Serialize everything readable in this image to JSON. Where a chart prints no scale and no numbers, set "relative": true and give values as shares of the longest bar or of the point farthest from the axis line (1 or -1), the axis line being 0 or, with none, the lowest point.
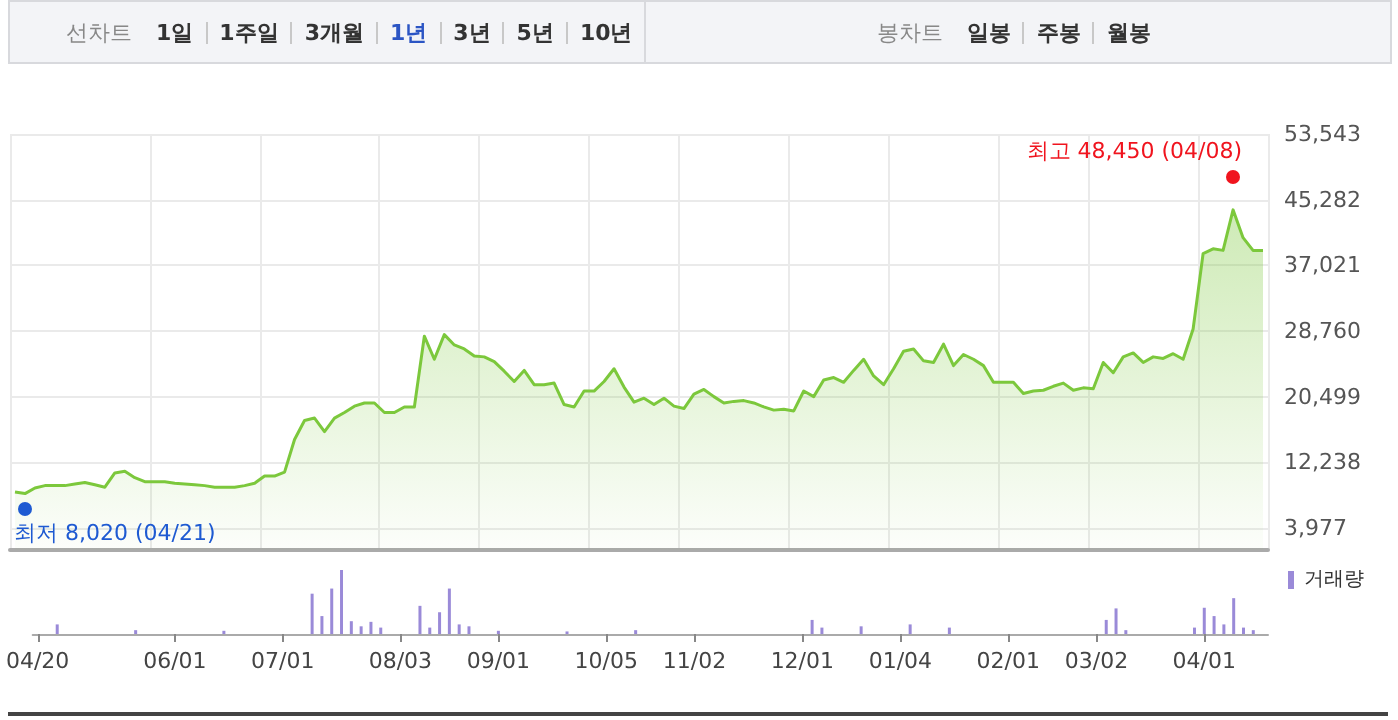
{
  "chart_data": [
    {
      "type": "area",
      "grid": true,
      "tick_labels": "y",
      "categories": [
        null,
        null,
        null,
        null,
        null,
        null,
        null,
        null,
        null,
        null,
        null,
        null,
        null,
        null,
        null,
        null,
        null,
        null,
        null,
        null,
        null,
        null,
        null,
        null,
        null,
        null,
        null,
        null,
        null,
        null,
        null,
        null,
        null,
        null,
        null,
        null,
        null,
        null,
        null,
        null,
        null,
        null,
        null,
        null,
        null,
        null,
        null,
        null,
        null,
        null,
        null,
        null,
        null,
        null,
        null,
        null,
        null,
        null,
        null,
        null,
        null,
        null,
        null,
        null,
        null,
        null,
        null,
        null,
        null,
        null,
        null,
        null,
        null,
        null,
        null,
        null,
        null,
        null,
        null,
        null,
        null,
        null,
        null,
        null,
        null,
        null,
        null,
        null,
        null,
        null,
        null,
        null,
        null,
        null,
        null,
        null,
        null,
        null,
        null,
        null,
        null,
        null,
        null,
        null,
        null,
        null,
        null,
        null,
        null,
        null,
        null,
        null,
        null,
        null,
        null,
        null,
        null,
        null,
        null,
        null,
        null,
        null,
        null,
        null,
        null,
        null
      ],
      "series": [
        {
          "color": "#7cc83c",
          "values": [
            8500,
            8300,
            9000,
            9300,
            9300,
            9300,
            9500,
            9700,
            9400,
            9100,
            10900,
            11100,
            10300,
            9800,
            9800,
            9800,
            9600,
            9500,
            9400,
            9300,
            9100,
            9100,
            9100,
            9300,
            9600,
            10500,
            10500,
            11000,
            15100,
            17500,
            17800,
            16100,
            17800,
            18500,
            19300,
            19700,
            19700,
            18500,
            18500,
            19200,
            19200,
            28100,
            25200,
            28300,
            27000,
            26500,
            25600,
            25500,
            24900,
            23700,
            22400,
            23800,
            22000,
            22000,
            22200,
            19500,
            19200,
            21200,
            21200,
            22400,
            24000,
            21700,
            19800,
            20300,
            19500,
            20300,
            19300,
            19000,
            20800,
            21400,
            20500,
            19700,
            19900,
            20000,
            19700,
            19200,
            18800,
            18900,
            18700,
            21200,
            20500,
            22600,
            22900,
            22300,
            23800,
            25200,
            23100,
            22000,
            24000,
            26200,
            26500,
            25000,
            24800,
            27100,
            24400,
            25800,
            25200,
            24400,
            22300,
            22300,
            22300,
            20900,
            21200,
            21300,
            21800,
            22200,
            21300,
            21600,
            21500,
            24800,
            23500,
            25500,
            26000,
            24800,
            25500,
            25300,
            25900,
            25200,
            29000,
            38500,
            39100,
            38900,
            44000,
            40500,
            38900,
            38900
          ]
        }
      ],
      "ylim": [
        1200,
        53543
      ],
      "yticks": [
        {
          "value": 3977,
          "label": "3,977"
        },
        {
          "value": 12238,
          "label": "12,238"
        },
        {
          "value": 20499,
          "label": "20,499"
        },
        {
          "value": 28760,
          "label": "28,760"
        },
        {
          "value": 37021,
          "label": "37,021"
        },
        {
          "value": 45282,
          "label": "45,282"
        },
        {
          "value": 53543,
          "label": "53,543"
        }
      ],
      "annotations": [
        "최고 48,450 (04/08)",
        "최저 8,020 (04/21)",
        "선차트",
        "1일",
        "1주일",
        "3개월",
        "1년",
        "3년",
        "5년",
        "10년",
        "봉차트",
        "일봉",
        "주봉",
        "월봉"
      ]
    },
    {
      "type": "bar",
      "relative": true,
      "tick_labels": "x",
      "legend": "top right",
      "categories": [
        "04/20",
        null,
        null,
        null,
        null,
        null,
        null,
        null,
        null,
        null,
        null,
        null,
        null,
        null,
        "06/01",
        null,
        null,
        null,
        null,
        null,
        null,
        null,
        null,
        null,
        null,
        "07/01",
        null,
        null,
        null,
        null,
        null,
        null,
        null,
        null,
        null,
        null,
        null,
        "08/03",
        null,
        null,
        null,
        null,
        null,
        null,
        null,
        null,
        null,
        "09/01",
        null,
        null,
        null,
        null,
        null,
        null,
        null,
        null,
        null,
        null,
        "10/05",
        null,
        null,
        null,
        null,
        null,
        null,
        null,
        null,
        "11/02",
        null,
        null,
        null,
        null,
        null,
        null,
        null,
        null,
        null,
        null,
        "12/01",
        null,
        null,
        null,
        null,
        null,
        null,
        null,
        null,
        null,
        "01/04",
        null,
        null,
        null,
        null,
        null,
        null,
        null,
        null,
        null,
        null,
        "02/01",
        null,
        null,
        null,
        null,
        null,
        null,
        null,
        null,
        "03/02",
        null,
        null,
        null,
        null,
        null,
        null,
        null,
        null,
        null,
        null,
        "04/01",
        null,
        null,
        null,
        null,
        null,
        null
      ],
      "series": [
        {
          "name": "거래량",
          "color": "#9a8ad8",
          "values": [
            null,
            null,
            0.15,
            null,
            null,
            null,
            null,
            null,
            null,
            null,
            0.06,
            null,
            null,
            null,
            null,
            null,
            null,
            null,
            null,
            0.05,
            null,
            null,
            null,
            null,
            null,
            null,
            null,
            null,
            0.63,
            0.28,
            0.71,
            1,
            0.2,
            0.12,
            0.19,
            0.1,
            null,
            null,
            null,
            0.44,
            0.1,
            0.34,
            0.71,
            0.15,
            0.12,
            null,
            null,
            0.05,
            null,
            null,
            null,
            null,
            null,
            null,
            0.04,
            null,
            null,
            null,
            null,
            null,
            null,
            0.06,
            null,
            null,
            null,
            null,
            null,
            null,
            null,
            null,
            null,
            null,
            null,
            null,
            null,
            null,
            null,
            null,
            null,
            0.22,
            0.1,
            null,
            null,
            null,
            0.12,
            null,
            null,
            null,
            null,
            0.15,
            null,
            null,
            null,
            0.1,
            null,
            null,
            null,
            null,
            null,
            null,
            null,
            null,
            null,
            null,
            null,
            null,
            null,
            null,
            null,
            0.22,
            0.4,
            0.06,
            null,
            null,
            null,
            null,
            null,
            null,
            0.1,
            0.41,
            0.28,
            0.15,
            0.56,
            0.1,
            0.06,
            null
          ]
        }
      ]
    }
  ]
}
